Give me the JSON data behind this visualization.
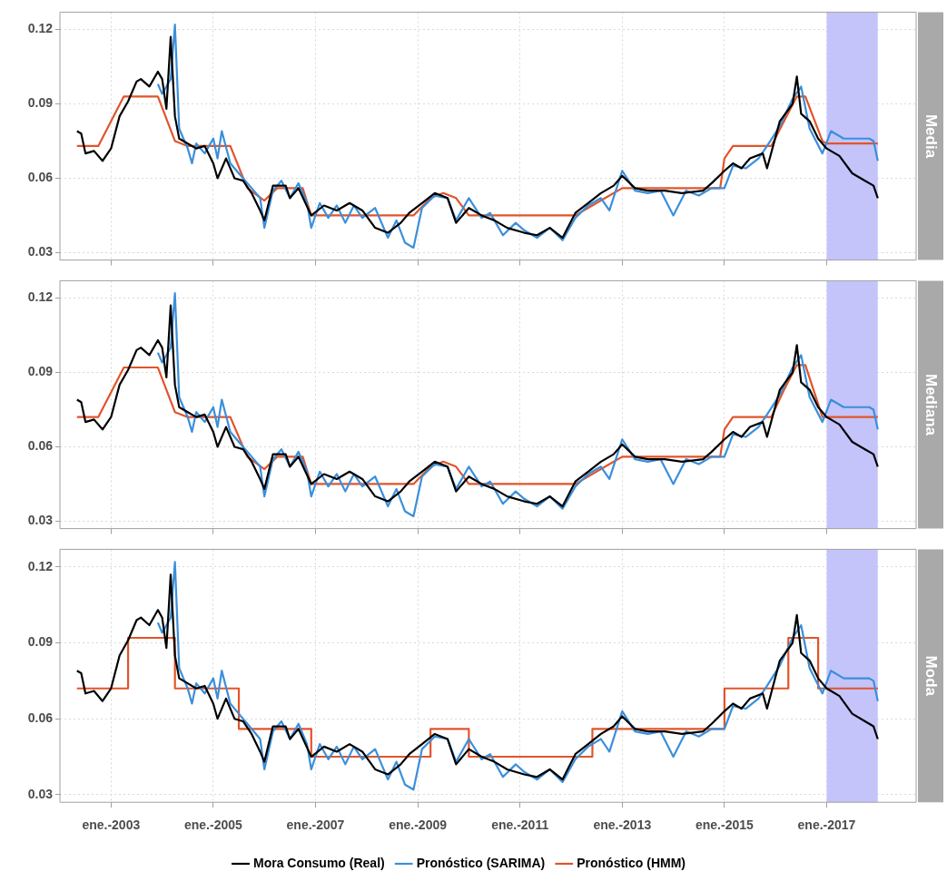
{
  "chart_data": [
    {
      "type": "line",
      "title": "Media",
      "xlim": [
        "2002-01",
        "2018-10"
      ],
      "xticks": [
        {
          "value": "2003-01",
          "label": null
        },
        {
          "value": "2005-01",
          "label": null
        },
        {
          "value": "2007-01",
          "label": null
        },
        {
          "value": "2009-01",
          "label": null
        },
        {
          "value": "2011-01",
          "label": null
        },
        {
          "value": "2013-01",
          "label": null
        },
        {
          "value": "2015-01",
          "label": null
        },
        {
          "value": "2017-01",
          "label": null
        }
      ],
      "ylim": [
        0.027,
        0.127
      ],
      "yticks": [
        0.03,
        0.06,
        0.09,
        0.12
      ],
      "tick_labels": "y",
      "grid": true,
      "legend": false,
      "bands": [
        {
          "axis": "x",
          "from": "2017-01",
          "to": "2018-01",
          "color": "#c4c4fb"
        }
      ],
      "series": [
        {
          "color": "#000000",
          "x": [
            "2002-05",
            "2002-06",
            "2002-07",
            "2002-09",
            "2002-11",
            "2003-01",
            "2003-03",
            "2003-05",
            "2003-07",
            "2003-08",
            "2003-10",
            "2003-12",
            "2004-01",
            "2004-02",
            "2004-03",
            "2004-04",
            "2004-05",
            "2004-07",
            "2004-09",
            "2004-11",
            "2005-01",
            "2005-02",
            "2005-04",
            "2005-06",
            "2005-08",
            "2005-10",
            "2005-12",
            "2006-01",
            "2006-03",
            "2006-06",
            "2006-07",
            "2006-09",
            "2006-12",
            "2007-03",
            "2007-06",
            "2007-09",
            "2007-12",
            "2008-03",
            "2008-06",
            "2008-09",
            "2008-11",
            "2009-02",
            "2009-05",
            "2009-08",
            "2009-10",
            "2010-01",
            "2010-04",
            "2010-07",
            "2010-10",
            "2011-02",
            "2011-05",
            "2011-08",
            "2011-11",
            "2012-02",
            "2012-05",
            "2012-08",
            "2012-11",
            "2013-01",
            "2013-04",
            "2013-07",
            "2013-11",
            "2014-03",
            "2014-08",
            "2014-10",
            "2015-01",
            "2015-03",
            "2015-05",
            "2015-07",
            "2015-10",
            "2015-11",
            "2016-02",
            "2016-05",
            "2016-06",
            "2016-07",
            "2016-09",
            "2016-11",
            "2017-01",
            "2017-04",
            "2017-07",
            "2017-10",
            "2017-12",
            "2018-01"
          ],
          "values": [
            0.079,
            0.078,
            0.07,
            0.071,
            0.067,
            0.072,
            0.085,
            0.091,
            0.099,
            0.1,
            0.097,
            0.103,
            0.1,
            0.088,
            0.117,
            0.085,
            0.076,
            0.074,
            0.072,
            0.073,
            0.066,
            0.06,
            0.068,
            0.06,
            0.059,
            0.054,
            0.047,
            0.043,
            0.057,
            0.057,
            0.052,
            0.056,
            0.045,
            0.049,
            0.047,
            0.05,
            0.047,
            0.04,
            0.038,
            0.042,
            0.046,
            0.05,
            0.054,
            0.052,
            0.042,
            0.048,
            0.045,
            0.043,
            0.04,
            0.038,
            0.037,
            0.04,
            0.036,
            0.046,
            0.05,
            0.054,
            0.057,
            0.061,
            0.056,
            0.055,
            0.055,
            0.054,
            0.055,
            0.058,
            0.063,
            0.066,
            0.064,
            0.068,
            0.07,
            0.064,
            0.083,
            0.09,
            0.101,
            0.086,
            0.083,
            0.076,
            0.072,
            0.069,
            0.062,
            0.059,
            0.057,
            0.052
          ]
        },
        {
          "color": "#3b8fdb",
          "x": [
            "2003-12",
            "2004-01",
            "2004-03",
            "2004-04",
            "2004-05",
            "2004-06",
            "2004-07",
            "2004-08",
            "2004-09",
            "2004-11",
            "2005-01",
            "2005-02",
            "2005-03",
            "2005-05",
            "2005-07",
            "2005-09",
            "2005-12",
            "2006-01",
            "2006-03",
            "2006-05",
            "2006-07",
            "2006-09",
            "2006-11",
            "2006-12",
            "2007-02",
            "2007-04",
            "2007-06",
            "2007-08",
            "2007-10",
            "2007-12",
            "2008-03",
            "2008-06",
            "2008-08",
            "2008-10",
            "2008-12",
            "2009-02",
            "2009-05",
            "2009-08",
            "2009-10",
            "2010-01",
            "2010-04",
            "2010-06",
            "2010-09",
            "2010-12",
            "2011-02",
            "2011-05",
            "2011-08",
            "2011-11",
            "2012-02",
            "2012-05",
            "2012-08",
            "2012-10",
            "2013-01",
            "2013-04",
            "2013-07",
            "2013-10",
            "2014-01",
            "2014-04",
            "2014-07",
            "2014-10",
            "2015-01",
            "2015-03",
            "2015-06",
            "2015-09",
            "2015-11",
            "2016-02",
            "2016-05",
            "2016-07",
            "2016-09",
            "2016-12",
            "2017-02",
            "2017-05",
            "2017-08",
            "2017-11",
            "2017-12",
            "2018-01"
          ],
          "values": [
            0.098,
            0.094,
            0.1,
            0.122,
            0.08,
            0.076,
            0.072,
            0.066,
            0.074,
            0.07,
            0.076,
            0.068,
            0.079,
            0.066,
            0.062,
            0.058,
            0.052,
            0.04,
            0.055,
            0.059,
            0.052,
            0.058,
            0.05,
            0.04,
            0.05,
            0.044,
            0.049,
            0.042,
            0.049,
            0.044,
            0.048,
            0.036,
            0.043,
            0.034,
            0.032,
            0.048,
            0.053,
            0.052,
            0.043,
            0.052,
            0.044,
            0.046,
            0.037,
            0.042,
            0.039,
            0.036,
            0.04,
            0.035,
            0.044,
            0.049,
            0.052,
            0.047,
            0.063,
            0.055,
            0.054,
            0.055,
            0.045,
            0.055,
            0.053,
            0.056,
            0.056,
            0.065,
            0.064,
            0.068,
            0.073,
            0.081,
            0.092,
            0.097,
            0.08,
            0.07,
            0.079,
            0.076,
            0.076,
            0.076,
            0.075,
            0.067
          ]
        },
        {
          "color": "#e2542a",
          "x": [
            "2002-05",
            "2002-10",
            "2003-04",
            "2003-12",
            "2004-04",
            "2004-07",
            "2005-05",
            "2005-09",
            "2006-01",
            "2006-04",
            "2006-10",
            "2006-12",
            "2008-12",
            "2009-04",
            "2009-07",
            "2009-10",
            "2010-01",
            "2012-02",
            "2012-09",
            "2013-01",
            "2014-12",
            "2015-01",
            "2015-03",
            "2015-12",
            "2016-03",
            "2016-06",
            "2016-08",
            "2016-12",
            "2017-01",
            "2018-01"
          ],
          "values": [
            0.073,
            0.073,
            0.093,
            0.093,
            0.075,
            0.073,
            0.073,
            0.056,
            0.051,
            0.056,
            0.056,
            0.045,
            0.045,
            0.052,
            0.054,
            0.052,
            0.045,
            0.045,
            0.052,
            0.056,
            0.056,
            0.068,
            0.073,
            0.073,
            0.083,
            0.093,
            0.093,
            0.075,
            0.074,
            0.074
          ]
        }
      ]
    },
    {
      "type": "line",
      "title": "Mediana",
      "xlim": [
        "2002-01",
        "2018-10"
      ],
      "xticks": [
        {
          "value": "2003-01",
          "label": null
        },
        {
          "value": "2005-01",
          "label": null
        },
        {
          "value": "2007-01",
          "label": null
        },
        {
          "value": "2009-01",
          "label": null
        },
        {
          "value": "2011-01",
          "label": null
        },
        {
          "value": "2013-01",
          "label": null
        },
        {
          "value": "2015-01",
          "label": null
        },
        {
          "value": "2017-01",
          "label": null
        }
      ],
      "ylim": [
        0.027,
        0.127
      ],
      "yticks": [
        0.03,
        0.06,
        0.09,
        0.12
      ],
      "tick_labels": "y",
      "grid": true,
      "legend": false,
      "bands": [
        {
          "axis": "x",
          "from": "2017-01",
          "to": "2018-01",
          "color": "#c4c4fb"
        }
      ],
      "series": [
        {
          "color": "#000000",
          "x": [
            "2002-05",
            "2002-06",
            "2002-07",
            "2002-09",
            "2002-11",
            "2003-01",
            "2003-03",
            "2003-05",
            "2003-07",
            "2003-08",
            "2003-10",
            "2003-12",
            "2004-01",
            "2004-02",
            "2004-03",
            "2004-04",
            "2004-05",
            "2004-07",
            "2004-09",
            "2004-11",
            "2005-01",
            "2005-02",
            "2005-04",
            "2005-06",
            "2005-08",
            "2005-10",
            "2005-12",
            "2006-01",
            "2006-03",
            "2006-06",
            "2006-07",
            "2006-09",
            "2006-12",
            "2007-03",
            "2007-06",
            "2007-09",
            "2007-12",
            "2008-03",
            "2008-06",
            "2008-09",
            "2008-11",
            "2009-02",
            "2009-05",
            "2009-08",
            "2009-10",
            "2010-01",
            "2010-04",
            "2010-07",
            "2010-10",
            "2011-02",
            "2011-05",
            "2011-08",
            "2011-11",
            "2012-02",
            "2012-05",
            "2012-08",
            "2012-11",
            "2013-01",
            "2013-04",
            "2013-07",
            "2013-11",
            "2014-03",
            "2014-08",
            "2014-10",
            "2015-01",
            "2015-03",
            "2015-05",
            "2015-07",
            "2015-10",
            "2015-11",
            "2016-02",
            "2016-05",
            "2016-06",
            "2016-07",
            "2016-09",
            "2016-11",
            "2017-01",
            "2017-04",
            "2017-07",
            "2017-10",
            "2017-12",
            "2018-01"
          ],
          "values": [
            0.079,
            0.078,
            0.07,
            0.071,
            0.067,
            0.072,
            0.085,
            0.091,
            0.099,
            0.1,
            0.097,
            0.103,
            0.1,
            0.088,
            0.117,
            0.085,
            0.076,
            0.074,
            0.072,
            0.073,
            0.066,
            0.06,
            0.068,
            0.06,
            0.059,
            0.054,
            0.047,
            0.043,
            0.057,
            0.057,
            0.052,
            0.056,
            0.045,
            0.049,
            0.047,
            0.05,
            0.047,
            0.04,
            0.038,
            0.042,
            0.046,
            0.05,
            0.054,
            0.052,
            0.042,
            0.048,
            0.045,
            0.043,
            0.04,
            0.038,
            0.037,
            0.04,
            0.036,
            0.046,
            0.05,
            0.054,
            0.057,
            0.061,
            0.056,
            0.055,
            0.055,
            0.054,
            0.055,
            0.058,
            0.063,
            0.066,
            0.064,
            0.068,
            0.07,
            0.064,
            0.083,
            0.09,
            0.101,
            0.086,
            0.083,
            0.076,
            0.072,
            0.069,
            0.062,
            0.059,
            0.057,
            0.052
          ]
        },
        {
          "color": "#3b8fdb",
          "x": [
            "2003-12",
            "2004-01",
            "2004-03",
            "2004-04",
            "2004-05",
            "2004-06",
            "2004-07",
            "2004-08",
            "2004-09",
            "2004-11",
            "2005-01",
            "2005-02",
            "2005-03",
            "2005-05",
            "2005-07",
            "2005-09",
            "2005-12",
            "2006-01",
            "2006-03",
            "2006-05",
            "2006-07",
            "2006-09",
            "2006-11",
            "2006-12",
            "2007-02",
            "2007-04",
            "2007-06",
            "2007-08",
            "2007-10",
            "2007-12",
            "2008-03",
            "2008-06",
            "2008-08",
            "2008-10",
            "2008-12",
            "2009-02",
            "2009-05",
            "2009-08",
            "2009-10",
            "2010-01",
            "2010-04",
            "2010-06",
            "2010-09",
            "2010-12",
            "2011-02",
            "2011-05",
            "2011-08",
            "2011-11",
            "2012-02",
            "2012-05",
            "2012-08",
            "2012-10",
            "2013-01",
            "2013-04",
            "2013-07",
            "2013-10",
            "2014-01",
            "2014-04",
            "2014-07",
            "2014-10",
            "2015-01",
            "2015-03",
            "2015-06",
            "2015-09",
            "2015-11",
            "2016-02",
            "2016-05",
            "2016-07",
            "2016-09",
            "2016-12",
            "2017-02",
            "2017-05",
            "2017-08",
            "2017-11",
            "2017-12",
            "2018-01"
          ],
          "values": [
            0.098,
            0.094,
            0.1,
            0.122,
            0.08,
            0.076,
            0.072,
            0.066,
            0.074,
            0.07,
            0.076,
            0.068,
            0.079,
            0.066,
            0.062,
            0.058,
            0.052,
            0.04,
            0.055,
            0.059,
            0.052,
            0.058,
            0.05,
            0.04,
            0.05,
            0.044,
            0.049,
            0.042,
            0.049,
            0.044,
            0.048,
            0.036,
            0.043,
            0.034,
            0.032,
            0.048,
            0.053,
            0.052,
            0.043,
            0.052,
            0.044,
            0.046,
            0.037,
            0.042,
            0.039,
            0.036,
            0.04,
            0.035,
            0.044,
            0.049,
            0.052,
            0.047,
            0.063,
            0.055,
            0.054,
            0.055,
            0.045,
            0.055,
            0.053,
            0.056,
            0.056,
            0.065,
            0.064,
            0.068,
            0.073,
            0.081,
            0.092,
            0.097,
            0.08,
            0.07,
            0.079,
            0.076,
            0.076,
            0.076,
            0.075,
            0.067
          ]
        },
        {
          "color": "#e2542a",
          "x": [
            "2002-05",
            "2002-10",
            "2003-04",
            "2003-12",
            "2004-04",
            "2004-07",
            "2005-05",
            "2005-09",
            "2006-01",
            "2006-04",
            "2006-10",
            "2006-12",
            "2008-12",
            "2009-04",
            "2009-07",
            "2009-10",
            "2010-01",
            "2012-02",
            "2012-09",
            "2013-01",
            "2014-12",
            "2015-01",
            "2015-03",
            "2015-12",
            "2016-03",
            "2016-06",
            "2016-08",
            "2016-12",
            "2018-01"
          ],
          "values": [
            0.072,
            0.072,
            0.092,
            0.092,
            0.074,
            0.072,
            0.072,
            0.056,
            0.051,
            0.056,
            0.056,
            0.045,
            0.045,
            0.052,
            0.054,
            0.052,
            0.045,
            0.045,
            0.052,
            0.056,
            0.056,
            0.067,
            0.072,
            0.072,
            0.083,
            0.093,
            0.093,
            0.072,
            0.072
          ]
        }
      ]
    },
    {
      "type": "line",
      "title": "Moda",
      "xlim": [
        "2002-01",
        "2018-10"
      ],
      "xticks": [
        {
          "value": "2003-01",
          "label": "ene.-2003"
        },
        {
          "value": "2005-01",
          "label": "ene.-2005"
        },
        {
          "value": "2007-01",
          "label": "ene.-2007"
        },
        {
          "value": "2009-01",
          "label": "ene.-2009"
        },
        {
          "value": "2011-01",
          "label": "ene.-2011"
        },
        {
          "value": "2013-01",
          "label": "ene.-2013"
        },
        {
          "value": "2015-01",
          "label": "ene.-2015"
        },
        {
          "value": "2017-01",
          "label": "ene.-2017"
        }
      ],
      "ylim": [
        0.027,
        0.127
      ],
      "yticks": [
        0.03,
        0.06,
        0.09,
        0.12
      ],
      "grid": true,
      "legend": "bottom",
      "bands": [
        {
          "axis": "x",
          "from": "2017-01",
          "to": "2018-01",
          "color": "#c4c4fb"
        }
      ],
      "series": [
        {
          "name": "Mora Consumo (Real)",
          "color": "#000000",
          "x": [
            "2002-05",
            "2002-06",
            "2002-07",
            "2002-09",
            "2002-11",
            "2003-01",
            "2003-03",
            "2003-05",
            "2003-07",
            "2003-08",
            "2003-10",
            "2003-12",
            "2004-01",
            "2004-02",
            "2004-03",
            "2004-04",
            "2004-05",
            "2004-07",
            "2004-09",
            "2004-11",
            "2005-01",
            "2005-02",
            "2005-04",
            "2005-06",
            "2005-08",
            "2005-10",
            "2005-12",
            "2006-01",
            "2006-03",
            "2006-06",
            "2006-07",
            "2006-09",
            "2006-12",
            "2007-03",
            "2007-06",
            "2007-09",
            "2007-12",
            "2008-03",
            "2008-06",
            "2008-09",
            "2008-11",
            "2009-02",
            "2009-05",
            "2009-08",
            "2009-10",
            "2010-01",
            "2010-04",
            "2010-07",
            "2010-10",
            "2011-02",
            "2011-05",
            "2011-08",
            "2011-11",
            "2012-02",
            "2012-05",
            "2012-08",
            "2012-11",
            "2013-01",
            "2013-04",
            "2013-07",
            "2013-11",
            "2014-03",
            "2014-08",
            "2014-10",
            "2015-01",
            "2015-03",
            "2015-05",
            "2015-07",
            "2015-10",
            "2015-11",
            "2016-02",
            "2016-05",
            "2016-06",
            "2016-07",
            "2016-09",
            "2016-11",
            "2017-01",
            "2017-04",
            "2017-07",
            "2017-10",
            "2017-12",
            "2018-01"
          ],
          "values": [
            0.079,
            0.078,
            0.07,
            0.071,
            0.067,
            0.072,
            0.085,
            0.091,
            0.099,
            0.1,
            0.097,
            0.103,
            0.1,
            0.088,
            0.117,
            0.085,
            0.076,
            0.074,
            0.072,
            0.073,
            0.066,
            0.06,
            0.068,
            0.06,
            0.059,
            0.054,
            0.047,
            0.043,
            0.057,
            0.057,
            0.052,
            0.056,
            0.045,
            0.049,
            0.047,
            0.05,
            0.047,
            0.04,
            0.038,
            0.042,
            0.046,
            0.05,
            0.054,
            0.052,
            0.042,
            0.048,
            0.045,
            0.043,
            0.04,
            0.038,
            0.037,
            0.04,
            0.036,
            0.046,
            0.05,
            0.054,
            0.057,
            0.061,
            0.056,
            0.055,
            0.055,
            0.054,
            0.055,
            0.058,
            0.063,
            0.066,
            0.064,
            0.068,
            0.07,
            0.064,
            0.083,
            0.09,
            0.101,
            0.086,
            0.083,
            0.076,
            0.072,
            0.069,
            0.062,
            0.059,
            0.057,
            0.052
          ]
        },
        {
          "name": "Pronóstico (SARIMA)",
          "color": "#3b8fdb",
          "x": [
            "2003-12",
            "2004-01",
            "2004-03",
            "2004-04",
            "2004-05",
            "2004-06",
            "2004-07",
            "2004-08",
            "2004-09",
            "2004-11",
            "2005-01",
            "2005-02",
            "2005-03",
            "2005-05",
            "2005-07",
            "2005-09",
            "2005-12",
            "2006-01",
            "2006-03",
            "2006-05",
            "2006-07",
            "2006-09",
            "2006-11",
            "2006-12",
            "2007-02",
            "2007-04",
            "2007-06",
            "2007-08",
            "2007-10",
            "2007-12",
            "2008-03",
            "2008-06",
            "2008-08",
            "2008-10",
            "2008-12",
            "2009-02",
            "2009-05",
            "2009-08",
            "2009-10",
            "2010-01",
            "2010-04",
            "2010-06",
            "2010-09",
            "2010-12",
            "2011-02",
            "2011-05",
            "2011-08",
            "2011-11",
            "2012-02",
            "2012-05",
            "2012-08",
            "2012-10",
            "2013-01",
            "2013-04",
            "2013-07",
            "2013-10",
            "2014-01",
            "2014-04",
            "2014-07",
            "2014-10",
            "2015-01",
            "2015-03",
            "2015-06",
            "2015-09",
            "2015-11",
            "2016-02",
            "2016-05",
            "2016-07",
            "2016-09",
            "2016-12",
            "2017-02",
            "2017-05",
            "2017-08",
            "2017-11",
            "2017-12",
            "2018-01"
          ],
          "values": [
            0.098,
            0.094,
            0.1,
            0.122,
            0.08,
            0.076,
            0.072,
            0.066,
            0.074,
            0.07,
            0.076,
            0.068,
            0.079,
            0.066,
            0.062,
            0.058,
            0.052,
            0.04,
            0.055,
            0.059,
            0.052,
            0.058,
            0.05,
            0.04,
            0.05,
            0.044,
            0.049,
            0.042,
            0.049,
            0.044,
            0.048,
            0.036,
            0.043,
            0.034,
            0.032,
            0.048,
            0.053,
            0.052,
            0.043,
            0.052,
            0.044,
            0.046,
            0.037,
            0.042,
            0.039,
            0.036,
            0.04,
            0.035,
            0.044,
            0.049,
            0.052,
            0.047,
            0.063,
            0.055,
            0.054,
            0.055,
            0.045,
            0.055,
            0.053,
            0.056,
            0.056,
            0.065,
            0.064,
            0.068,
            0.073,
            0.081,
            0.092,
            0.097,
            0.08,
            0.07,
            0.079,
            0.076,
            0.076,
            0.076,
            0.075,
            0.067
          ]
        },
        {
          "name": "Pronóstico (HMM)",
          "type": "step",
          "color": "#e2542a",
          "x": [
            "2002-05",
            "2003-05",
            "2004-04",
            "2005-07",
            "2006-12",
            "2009-04",
            "2010-01",
            "2012-06",
            "2015-01",
            "2016-04",
            "2016-11",
            "2018-01"
          ],
          "values": [
            0.072,
            0.092,
            0.072,
            0.056,
            0.045,
            0.056,
            0.045,
            0.056,
            0.072,
            0.092,
            0.072,
            0.072
          ]
        }
      ]
    }
  ]
}
